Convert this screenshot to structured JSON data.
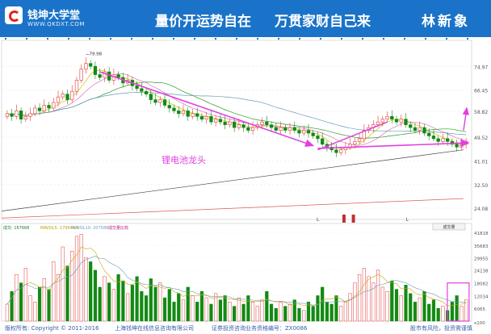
{
  "header": {
    "brand_name": "钱坤大学堂",
    "brand_url": "WWW.QKDXT.COM",
    "slogan_left": "量价开运势自在",
    "slogan_right": "万贯家财自己来",
    "author": "林新象"
  },
  "price_panel": {
    "annotation": "锂电池龙头",
    "high_label": "79.98",
    "y_ticks": [
      "74.97",
      "66.45",
      "58.82",
      "49.52",
      "41.01",
      "32.50",
      "24.08"
    ],
    "colors": {
      "up": "#e03a3a",
      "down": "#128a12",
      "arrow": "#e040e0"
    }
  },
  "volume_panel": {
    "legend": {
      "vol": "成交: 167668",
      "ma5": "MAVOL5: 179646.5",
      "ma10": "MAVOL10: 207588",
      "extra": "成交量比较"
    },
    "indicator_button": "成交量",
    "y_ticks": [
      "41818",
      "35683",
      "29955",
      "24238",
      "18082",
      "12034",
      "6065"
    ],
    "unit": "x100"
  },
  "footer": {
    "copyright": "版权所有: Copyright © 2011-2016",
    "company": "上海钱坤在线信息咨询有限公司",
    "license": "证券投资咨询业务资格编号：ZX0086",
    "risk": "股市有风险，投资需谨慎"
  },
  "chart_data": {
    "type": "candlestick",
    "date_labels": [
      "L",
      "L",
      "L"
    ],
    "close": [
      58,
      57,
      59,
      56,
      57,
      58,
      60,
      59,
      61,
      60,
      62,
      64,
      65,
      63,
      66,
      70,
      74,
      76,
      75,
      72,
      71,
      73,
      70,
      72,
      71,
      69,
      70,
      68,
      67,
      66,
      65,
      63,
      62,
      63,
      61,
      60,
      59,
      58,
      59,
      57,
      58,
      57,
      56,
      57,
      55,
      56,
      55,
      54,
      55,
      53,
      54,
      53,
      52,
      53,
      54,
      55,
      54,
      53,
      52,
      53,
      52,
      53,
      52,
      51,
      52,
      51,
      50,
      49,
      47,
      46,
      45,
      44,
      45,
      46,
      47,
      48,
      49,
      52,
      53,
      54,
      55,
      56,
      57,
      56,
      55,
      56,
      54,
      53,
      52,
      53,
      51,
      50,
      49,
      48,
      49,
      48,
      47,
      46,
      47,
      48
    ],
    "volume": [
      8000,
      14000,
      22000,
      18000,
      25000,
      12000,
      9000,
      16000,
      20000,
      15000,
      28000,
      22000,
      35000,
      26000,
      33000,
      40000,
      41000,
      30000,
      28000,
      24000,
      16000,
      21000,
      18000,
      15000,
      22000,
      19000,
      13000,
      17000,
      21000,
      14000,
      12000,
      20000,
      16000,
      18000,
      11000,
      15000,
      9000,
      13000,
      10000,
      16000,
      12000,
      9000,
      14000,
      11000,
      8000,
      13000,
      10000,
      12000,
      9000,
      7000,
      11000,
      8000,
      12000,
      9000,
      7000,
      10000,
      14000,
      8000,
      6000,
      9000,
      7000,
      8000,
      10000,
      6000,
      5000,
      9000,
      7000,
      12000,
      16000,
      9000,
      8000,
      12000,
      7000,
      9000,
      13000,
      18000,
      22000,
      25000,
      21000,
      18000,
      24000,
      16000,
      14000,
      19000,
      15000,
      12000,
      17000,
      13000,
      9000,
      11000,
      14000,
      8000,
      10000,
      6000,
      7000,
      5000,
      9000,
      12000,
      7000,
      10000
    ],
    "price_ylim": [
      20,
      82
    ],
    "volume_ylim": [
      0,
      43000
    ]
  }
}
